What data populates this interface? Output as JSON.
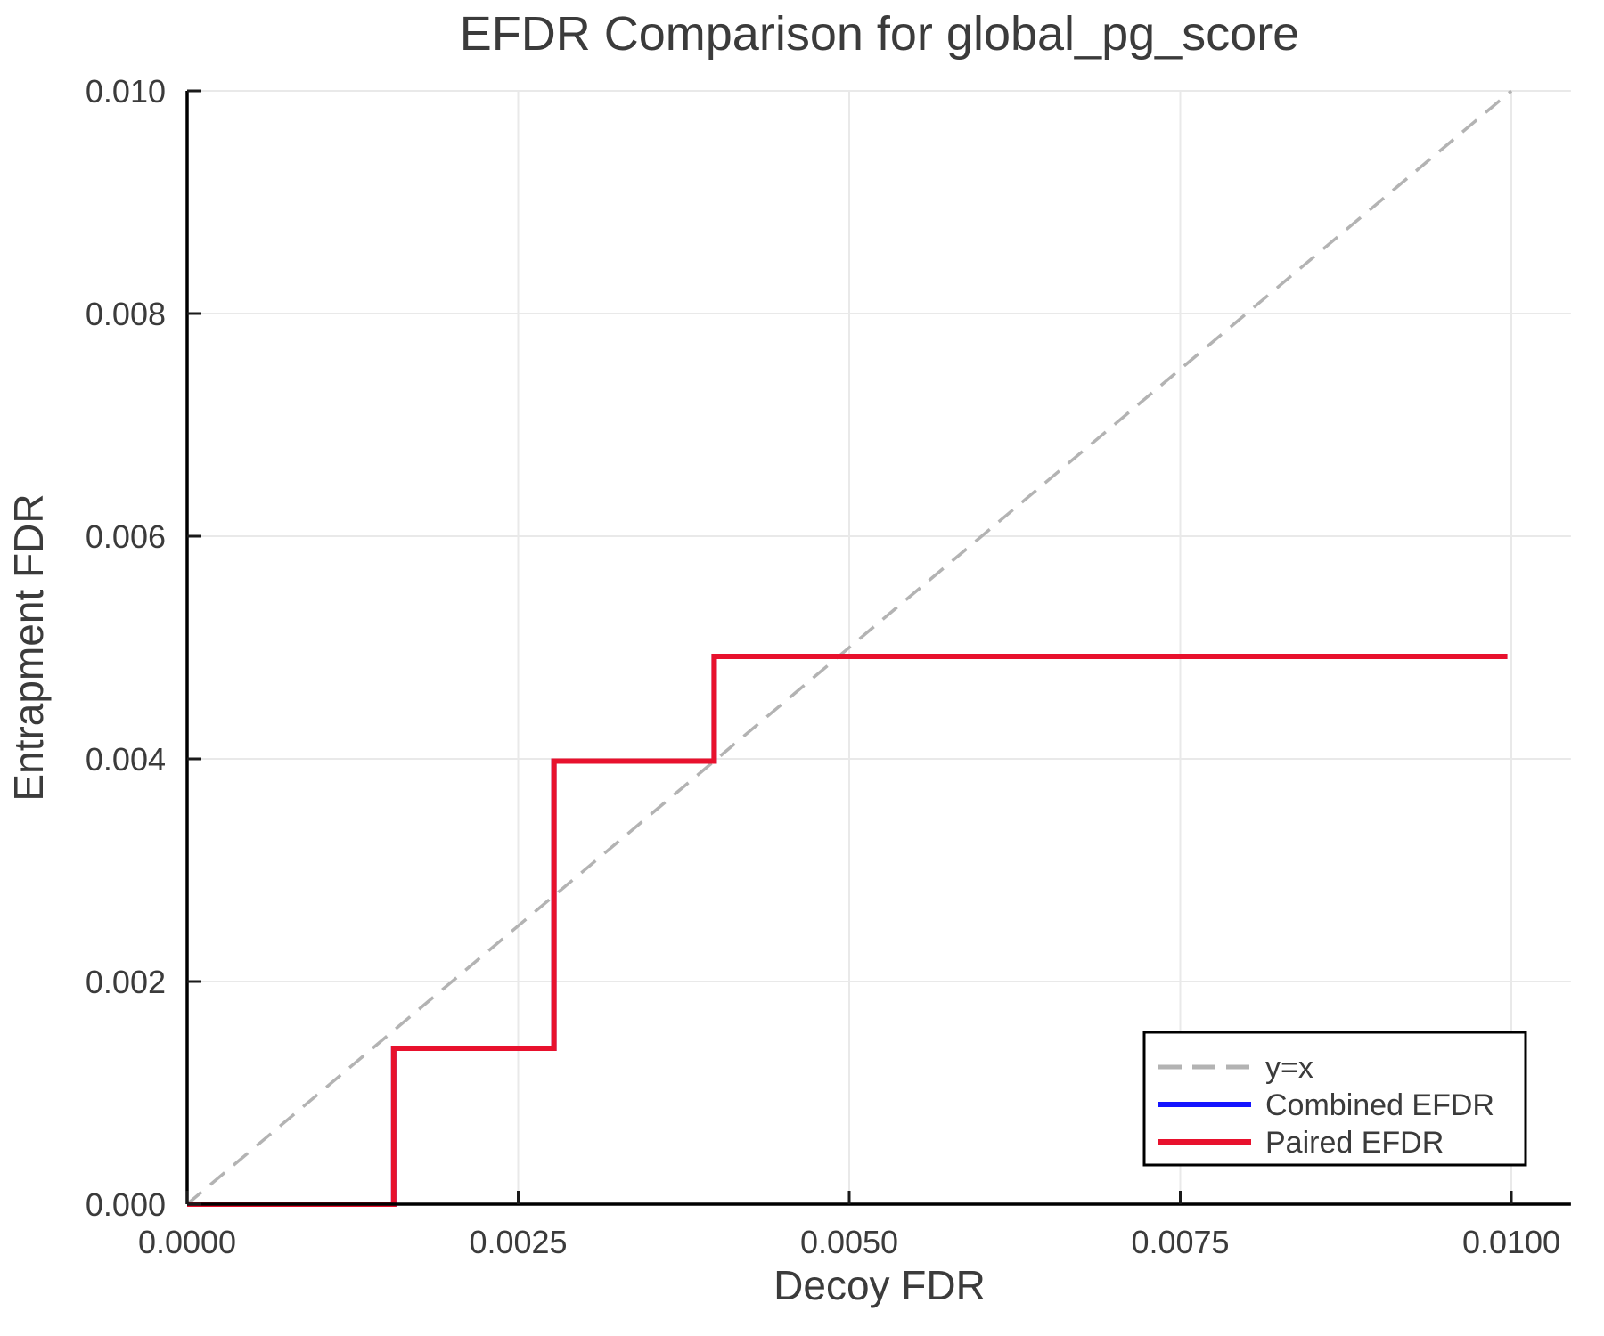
{
  "figure": {
    "background": "#ffffff",
    "text_color": "#3b3b3b",
    "spine_color": "#000000",
    "grid_color": "#e9e9e9",
    "tick_color": "#1a1a1a",
    "legend_border_color": "#000000",
    "legend_background": "#ffffff"
  },
  "chart_data": {
    "type": "line",
    "title": "EFDR Comparison for global_pg_score",
    "xlabel": "Decoy FDR",
    "ylabel": "Entrapment FDR",
    "xlim": [
      0,
      0.01045
    ],
    "ylim": [
      0,
      0.01
    ],
    "grid": true,
    "legend_position": "lower right",
    "x_ticks": {
      "values": [
        0,
        0.0025,
        0.005,
        0.0075,
        0.01
      ],
      "labels": [
        "0.0000",
        "0.0025",
        "0.0050",
        "0.0075",
        "0.0100"
      ]
    },
    "y_ticks": {
      "values": [
        0,
        0.002,
        0.004,
        0.006,
        0.008,
        0.01
      ],
      "labels": [
        "0.000",
        "0.002",
        "0.004",
        "0.006",
        "0.008",
        "0.010"
      ]
    },
    "series": [
      {
        "name": "y=x",
        "color": "#b3b3b3",
        "style": "dashed",
        "width": 3.5,
        "points": [
          [
            0,
            0
          ],
          [
            0.01,
            0.01
          ]
        ]
      },
      {
        "name": "Combined EFDR",
        "color": "#1414ff",
        "style": "solid",
        "width": 6,
        "points": [
          [
            0,
            0
          ],
          [
            0.00156,
            0
          ],
          [
            0.00156,
            0.0014
          ],
          [
            0.00277,
            0.0014
          ],
          [
            0.00277,
            0.00398
          ],
          [
            0.00398,
            0.00398
          ],
          [
            0.00398,
            0.00492
          ],
          [
            0.00997,
            0.00492
          ]
        ]
      },
      {
        "name": "Paired EFDR",
        "color": "#e8112d",
        "style": "solid",
        "width": 6,
        "points": [
          [
            0,
            0
          ],
          [
            0.00156,
            0
          ],
          [
            0.00156,
            0.0014
          ],
          [
            0.00277,
            0.0014
          ],
          [
            0.00277,
            0.00398
          ],
          [
            0.00398,
            0.00398
          ],
          [
            0.00398,
            0.00492
          ],
          [
            0.00997,
            0.00492
          ]
        ]
      }
    ]
  }
}
